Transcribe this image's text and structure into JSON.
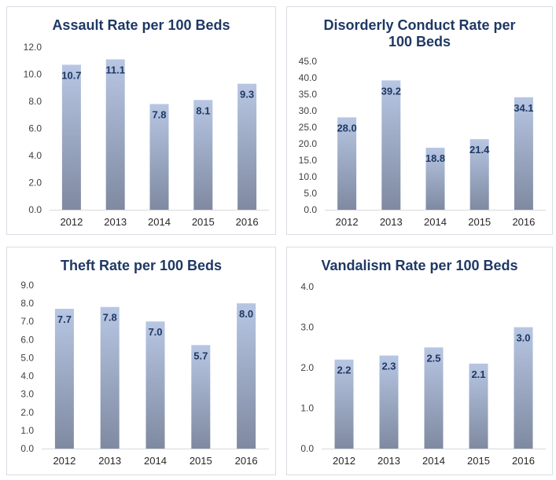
{
  "chart_data": [
    {
      "type": "bar",
      "title": "Assault Rate per 100 Beds",
      "categories": [
        "2012",
        "2013",
        "2014",
        "2015",
        "2016"
      ],
      "values": [
        10.7,
        11.1,
        7.8,
        8.1,
        9.3
      ],
      "ylim": [
        0,
        12
      ],
      "yticks": [
        "0.0",
        "2.0",
        "4.0",
        "6.0",
        "8.0",
        "10.0",
        "12.0"
      ],
      "grid": false,
      "legend": "none"
    },
    {
      "type": "bar",
      "title": "Disorderly Conduct Rate per 100 Beds",
      "categories": [
        "2012",
        "2013",
        "2014",
        "2015",
        "2016"
      ],
      "values": [
        28.0,
        39.2,
        18.8,
        21.4,
        34.1
      ],
      "ylim": [
        0,
        45
      ],
      "yticks": [
        "0.0",
        "5.0",
        "10.0",
        "15.0",
        "20.0",
        "25.0",
        "30.0",
        "35.0",
        "40.0",
        "45.0"
      ],
      "grid": false,
      "legend": "none"
    },
    {
      "type": "bar",
      "title": "Theft Rate per 100 Beds",
      "categories": [
        "2012",
        "2013",
        "2014",
        "2015",
        "2016"
      ],
      "values": [
        7.7,
        7.8,
        7.0,
        5.7,
        8.0
      ],
      "ylim": [
        0,
        9
      ],
      "yticks": [
        "0.0",
        "1.0",
        "2.0",
        "3.0",
        "4.0",
        "5.0",
        "6.0",
        "7.0",
        "8.0",
        "9.0"
      ],
      "grid": false,
      "legend": "none"
    },
    {
      "type": "bar",
      "title": "Vandalism Rate per 100 Beds",
      "categories": [
        "2012",
        "2013",
        "2014",
        "2015",
        "2016"
      ],
      "values": [
        2.2,
        2.3,
        2.5,
        2.1,
        3.0
      ],
      "ylim": [
        0,
        4
      ],
      "yticks": [
        "0.0",
        "1.0",
        "2.0",
        "3.0",
        "4.0"
      ],
      "grid": false,
      "legend": "none"
    }
  ],
  "colors": {
    "bar_top": "#b7c6e3",
    "bar_bottom": "#7f8aa1",
    "title": "#1f3864",
    "label": "#1f3864"
  }
}
